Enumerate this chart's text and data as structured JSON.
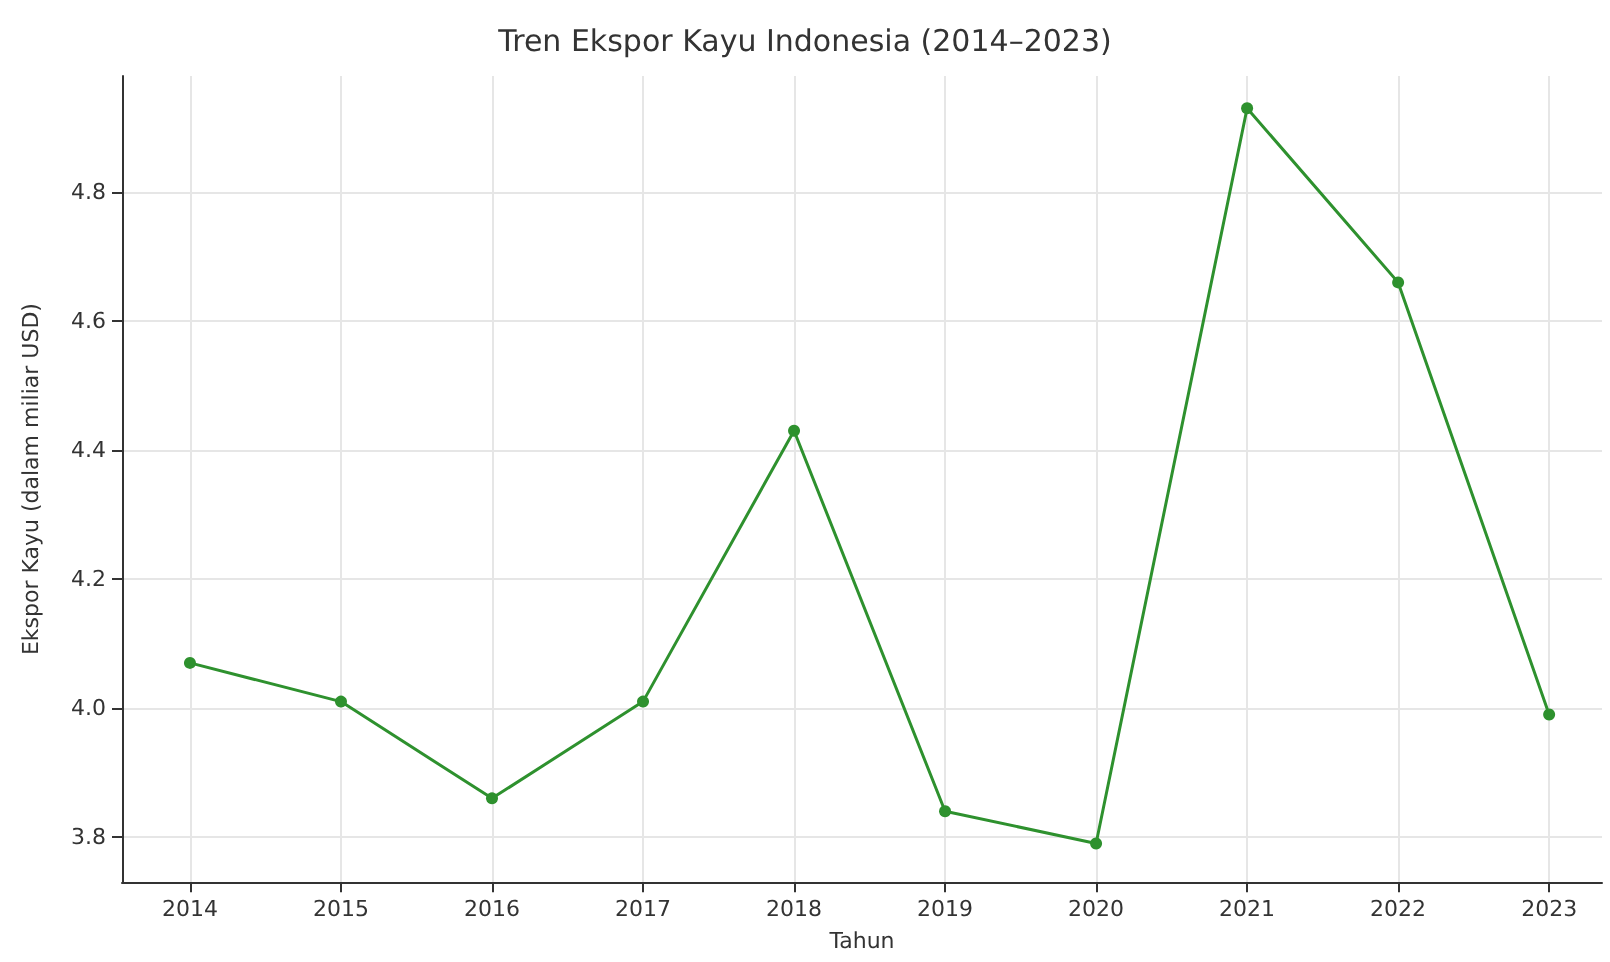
{
  "chart_data": {
    "type": "line",
    "title": "Tren Ekspor Kayu Indonesia (2014–2023)",
    "xlabel": "Tahun",
    "ylabel": "Ekspor Kayu (dalam miliar USD)",
    "x": [
      2014,
      2015,
      2016,
      2017,
      2018,
      2019,
      2020,
      2021,
      2022,
      2023
    ],
    "series": [
      {
        "color": "#2e912e",
        "values": [
          4.07,
          4.01,
          3.86,
          4.01,
          4.43,
          3.84,
          3.79,
          4.93,
          4.66,
          3.99
        ]
      }
    ],
    "xlim": [
      2013.55,
      2023.35
    ],
    "xticks": [
      2014,
      2015,
      2016,
      2017,
      2018,
      2019,
      2020,
      2021,
      2022,
      2023
    ],
    "ylim": [
      3.73,
      4.98
    ],
    "yticks": [
      {
        "value": 3.8,
        "label": "3.8"
      },
      {
        "value": 4.0,
        "label": "4.0"
      },
      {
        "value": 4.2,
        "label": "4.2"
      },
      {
        "value": 4.4,
        "label": "4.4"
      },
      {
        "value": 4.6,
        "label": "4.6"
      },
      {
        "value": 4.8,
        "label": "4.8"
      }
    ],
    "grid": true,
    "marker": "circle",
    "line_style": "solid"
  }
}
